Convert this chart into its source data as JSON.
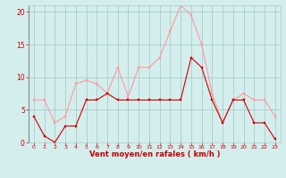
{
  "x": [
    0,
    1,
    2,
    3,
    4,
    5,
    6,
    7,
    8,
    9,
    10,
    11,
    12,
    13,
    14,
    15,
    16,
    17,
    18,
    19,
    20,
    21,
    22,
    23
  ],
  "wind_avg": [
    4,
    1,
    0,
    2.5,
    2.5,
    6.5,
    6.5,
    7.5,
    6.5,
    6.5,
    6.5,
    6.5,
    6.5,
    6.5,
    6.5,
    13,
    11.5,
    6.5,
    3,
    6.5,
    6.5,
    3,
    3,
    0.5
  ],
  "wind_gust": [
    6.5,
    6.5,
    3,
    4,
    9,
    9.5,
    9,
    7.5,
    11.5,
    7,
    11.5,
    11.5,
    13,
    17,
    21,
    19.5,
    15,
    7.5,
    3,
    6.5,
    7.5,
    6.5,
    6.5,
    4
  ],
  "avg_color": "#cc0000",
  "gust_color": "#ff9999",
  "bg_color": "#d4eeee",
  "grid_color": "#aacccc",
  "axis_line_color": "#888888",
  "xlabel": "Vent moyen/en rafales ( km/h )",
  "xlabel_color": "#cc0000",
  "tick_color": "#cc0000",
  "ylim": [
    0,
    21
  ],
  "yticks": [
    0,
    5,
    10,
    15,
    20
  ],
  "xlim": [
    -0.5,
    23.5
  ],
  "xticks": [
    0,
    1,
    2,
    3,
    4,
    5,
    6,
    7,
    8,
    9,
    10,
    11,
    12,
    13,
    14,
    15,
    16,
    17,
    18,
    19,
    20,
    21,
    22,
    23
  ]
}
